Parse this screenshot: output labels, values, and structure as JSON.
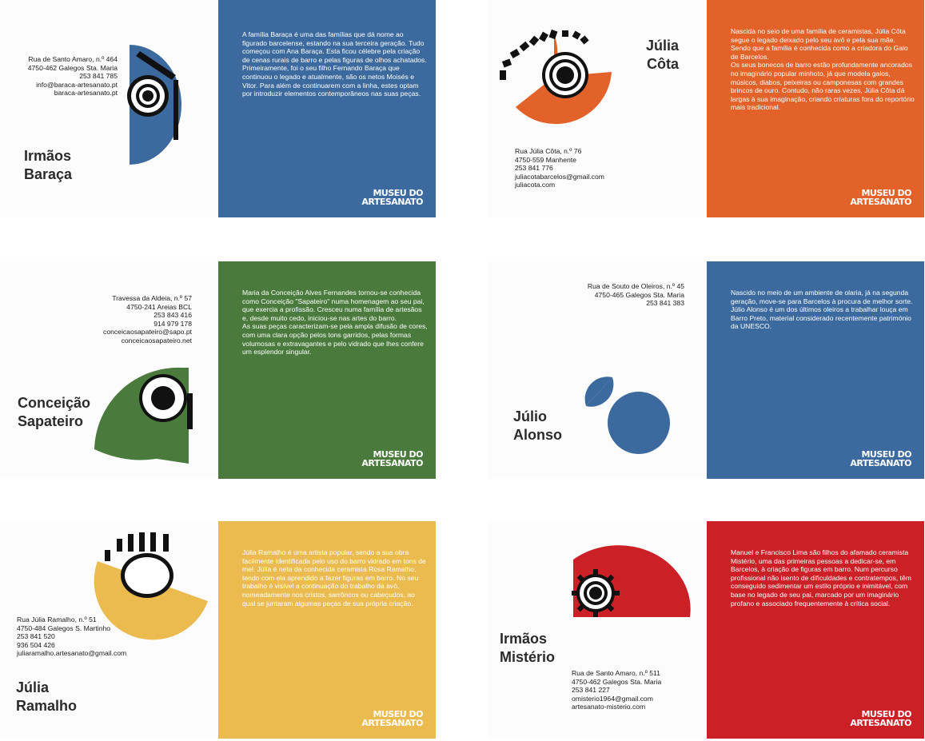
{
  "brand": {
    "logo_line1": "MUSEU DO",
    "logo_line2": "ARTESANATO"
  },
  "cards": [
    {
      "name": "Irmãos\nBaraça",
      "address": "Rua de Santo Amaro, n.º 464\n4750-462 Galegos Sta. Maria\n253 841 785\ninfo@baraca-artesanato.pt\nbaraca-artesanato.pt",
      "text": "A família Baraça é uma das famílias que dá nome ao figurado barcelense, estando na sua terceira geração. Tudo começou com Ana Baraça. Esta ficou célebre pela criação de cenas rurais de barro e pelas figuras de olhos achatados. Primeiramente, foi o seu filho Fernando Baraça que continuou o legado e atualmente, são os netos Moisés e Vitor. Para além de continuarem com a linha, estes optam por introduzir elementos contemporâneos nas suas peças.",
      "color": "#3c6a9e"
    },
    {
      "name": "Júlia\nCôta",
      "address": "Rua Júlia Côta, n.º 76\n4750-559 Manhente\n253 841 776\njuliacotabarcelos@gmail.com\njuliacota.com",
      "text": "Nascida no seio de uma família de ceramistas, Júlia Côta segue o legado deixado pelo seu avô e pela sua mãe.\nSendo que a família é conhecida como a criadora do Galo de Barcelos.\nOs seus bonecos de barro estão profundamente ancorados no imaginário popular minhoto, já que modela galos, músicos, diabos, peixeiras ou camponesas com grandes brincos de ouro. Contudo, não raras vezes, Júlia Côta dá largas à sua imaginação, criando criaturas fora do reportório mais tradicional.",
      "color": "#e2622a"
    },
    {
      "name": "Conceição\nSapateiro",
      "address": "Travessa da Aldeia, n.º 57\n4750-241 Areias BCL\n253 843 416\n914 979 178\nconceicaosapateiro@sapo.pt\nconceicaosapateiro.net",
      "text": "Maria da Conceição Alves Fernandes tornou-se conhecida como Conceição \"Sapateiro\" numa homenagem ao seu pai, que exercia a profissão. Cresceu numa família de artesãos e, desde muito cedo, iniciou-se nas artes do barro.\nAs suas peças caracterizam-se pela ampla difusão de cores, com uma clara opção pelos tons garridos, pelas formas volumosas e extravagantes e pelo vidrado que lhes confere um esplendor singular.",
      "color": "#4a7a3c"
    },
    {
      "name": "Júlio\nAlonso",
      "address": "Rua de Souto de Oleiros, n.º 45\n4750-465 Galegos Sta. Maria\n253 841 383",
      "text": "Nascido no meio de um ambiente de olaria, já na segunda geração, move-se para Barcelos à procura de melhor sorte.\nJúlio Alonso é um dos últimos oleiros a trabalhar louça em Barro Preto, material considerado recentemente património da UNESCO.",
      "color": "#3c6a9e"
    },
    {
      "name": "Júlia\nRamalho",
      "address": "Rua Júlia Ramalho, n.º 51\n4750-484 Galegos S. Martinho\n253 841 520\n936 504 426\njuliaramalho.artesanato@gmail.com",
      "text": "Júlia Ramalho é uma artista popular, sendo a sua obra facilmente identificada pelo uso do barro vidrado em tons de mel. Júlia é neta da conhecida ceramista Rosa Ramalho, tendo com ela aprendido a fazer figuras em barro. No seu trabalho é visível a continuação do trabalho da avó, nomeadamente nos cristos, sarrôncos ou cabeçudos, ao qual se juntaram algumas peças de sua própria criação.",
      "color": "#ebbb4f"
    },
    {
      "name": "Irmãos\nMistério",
      "address": "Rua de Santo Amaro, n.º 511\n4750-462 Galegos Sta. Maria\n253 841 227\nomisterio1964@gmail.com\nartesanato-misterio.com",
      "text": "Manuel e Francisco Lima são filhos do afamado ceramista Mistério, uma das primeiras pessoas a dedicar-se, em Barcelos, à criação de figuras em barro. Num percurso profissional não isento de dificuldades e contratempos, têm conseguido sedimentar um estilo próprio e inimitável, com base no legado de seu pai, marcado por um imaginário profano e associado frequentemente à crítica social.",
      "color": "#cc2027"
    }
  ]
}
